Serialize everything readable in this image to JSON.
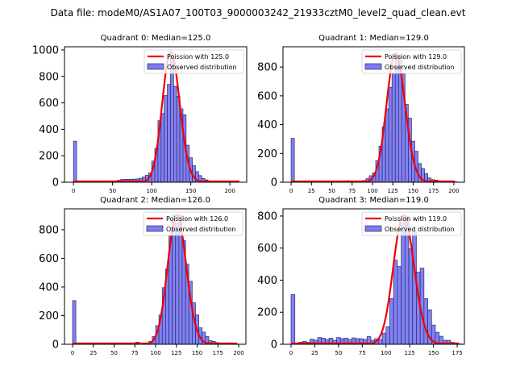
{
  "suptitle": "Data file: modeM0/AS1A07_100T03_9000003242_21933cztM0_level2_quad_clean.evt",
  "colors": {
    "bar_fill": "#7b7bf2",
    "bar_edge": "#2a2a6e",
    "poisson_line": "#ee0000"
  },
  "chart_data": [
    {
      "type": "bar",
      "title": "Quadrant 0: Median=125.0",
      "median": 125.0,
      "bin_width": 4,
      "xlim": [
        -11.5,
        221.5
      ],
      "ylim": [
        0,
        1024
      ],
      "xticks": [
        0,
        50,
        100,
        150,
        200
      ],
      "yticks": [
        0,
        200,
        400,
        600,
        800,
        1000
      ],
      "legend": {
        "position": "top-right",
        "entries": [
          "Poission with 125.0",
          "Observed distribution"
        ]
      },
      "bins": [
        [
          0,
          310
        ],
        [
          36,
          5
        ],
        [
          40,
          5
        ],
        [
          44,
          5
        ],
        [
          48,
          8
        ],
        [
          52,
          10
        ],
        [
          56,
          15
        ],
        [
          60,
          20
        ],
        [
          64,
          22
        ],
        [
          68,
          22
        ],
        [
          72,
          22
        ],
        [
          76,
          24
        ],
        [
          80,
          25
        ],
        [
          84,
          30
        ],
        [
          88,
          40
        ],
        [
          92,
          52
        ],
        [
          96,
          70
        ],
        [
          100,
          160
        ],
        [
          104,
          255
        ],
        [
          108,
          465
        ],
        [
          112,
          520
        ],
        [
          116,
          655
        ],
        [
          120,
          740
        ],
        [
          124,
          960
        ],
        [
          128,
          725
        ],
        [
          132,
          650
        ],
        [
          136,
          555
        ],
        [
          140,
          510
        ],
        [
          144,
          280
        ],
        [
          148,
          185
        ],
        [
          152,
          125
        ],
        [
          156,
          80
        ],
        [
          160,
          50
        ],
        [
          164,
          28
        ],
        [
          168,
          18
        ],
        [
          172,
          10
        ],
        [
          176,
          6
        ],
        [
          180,
          4
        ],
        [
          184,
          3
        ],
        [
          188,
          2
        ]
      ],
      "poisson_mean": 125.0,
      "poisson_peak": 985,
      "poisson_xrange": [
        0,
        212
      ]
    },
    {
      "type": "bar",
      "title": "Quadrant 1: Median=129.0",
      "median": 129.0,
      "bin_width": 4,
      "xlim": [
        -10,
        213
      ],
      "ylim": [
        0,
        941
      ],
      "xticks": [
        0,
        25,
        50,
        75,
        100,
        125,
        150,
        175,
        200
      ],
      "yticks": [
        0,
        200,
        400,
        600,
        800
      ],
      "legend": {
        "position": "top-right",
        "entries": [
          "Poission with 129.0",
          "Observed distribution"
        ]
      },
      "bins": [
        [
          0,
          305
        ],
        [
          68,
          10
        ],
        [
          72,
          8
        ],
        [
          84,
          8
        ],
        [
          88,
          12
        ],
        [
          92,
          25
        ],
        [
          96,
          45
        ],
        [
          100,
          65
        ],
        [
          104,
          150
        ],
        [
          108,
          250
        ],
        [
          112,
          385
        ],
        [
          116,
          510
        ],
        [
          120,
          660
        ],
        [
          124,
          760
        ],
        [
          128,
          880
        ],
        [
          132,
          880
        ],
        [
          136,
          755
        ],
        [
          140,
          540
        ],
        [
          144,
          445
        ],
        [
          148,
          285
        ],
        [
          152,
          215
        ],
        [
          156,
          130
        ],
        [
          160,
          95
        ],
        [
          164,
          60
        ],
        [
          168,
          30
        ],
        [
          172,
          18
        ],
        [
          176,
          15
        ],
        [
          180,
          10
        ],
        [
          184,
          5
        ],
        [
          196,
          4
        ],
        [
          200,
          3
        ]
      ],
      "poisson_mean": 129.0,
      "poisson_peak": 895,
      "poisson_xrange": [
        0,
        201
      ]
    },
    {
      "type": "bar",
      "title": "Quadrant 2: Median=126.0",
      "median": 126.0,
      "bin_width": 4,
      "xlim": [
        -9.7,
        208.7
      ],
      "ylim": [
        0,
        946
      ],
      "xticks": [
        0,
        25,
        50,
        75,
        100,
        125,
        150,
        175,
        200
      ],
      "yticks": [
        0,
        200,
        400,
        600,
        800
      ],
      "legend": {
        "position": "top-right",
        "entries": [
          "Poission with 126.0",
          "Observed distribution"
        ]
      },
      "bins": [
        [
          0,
          305
        ],
        [
          76,
          15
        ],
        [
          88,
          10
        ],
        [
          92,
          20
        ],
        [
          96,
          55
        ],
        [
          100,
          130
        ],
        [
          104,
          205
        ],
        [
          108,
          395
        ],
        [
          112,
          525
        ],
        [
          116,
          755
        ],
        [
          120,
          900
        ],
        [
          124,
          845
        ],
        [
          128,
          900
        ],
        [
          132,
          725
        ],
        [
          136,
          560
        ],
        [
          140,
          440
        ],
        [
          144,
          290
        ],
        [
          148,
          205
        ],
        [
          152,
          115
        ],
        [
          156,
          85
        ],
        [
          160,
          55
        ],
        [
          164,
          25
        ],
        [
          168,
          20
        ],
        [
          172,
          12
        ],
        [
          176,
          5
        ],
        [
          180,
          3
        ],
        [
          196,
          2
        ]
      ],
      "poisson_mean": 126.0,
      "poisson_peak": 905,
      "poisson_xrange": [
        0,
        198
      ]
    },
    {
      "type": "bar",
      "title": "Quadrant 3: Median=119.0",
      "median": 119.0,
      "bin_width": 4,
      "xlim": [
        -8.5,
        182.6
      ],
      "ylim": [
        0,
        845
      ],
      "xticks": [
        0,
        25,
        50,
        75,
        100,
        125,
        150,
        175
      ],
      "yticks": [
        0,
        200,
        400,
        600,
        800
      ],
      "legend": {
        "position": "top-right",
        "entries": [
          "Poission with 119.0",
          "Observed distribution"
        ]
      },
      "bins": [
        [
          0,
          310
        ],
        [
          8,
          12
        ],
        [
          12,
          18
        ],
        [
          16,
          12
        ],
        [
          20,
          32
        ],
        [
          24,
          25
        ],
        [
          28,
          42
        ],
        [
          32,
          38
        ],
        [
          36,
          30
        ],
        [
          40,
          38
        ],
        [
          44,
          25
        ],
        [
          48,
          42
        ],
        [
          52,
          35
        ],
        [
          56,
          38
        ],
        [
          60,
          30
        ],
        [
          64,
          40
        ],
        [
          68,
          35
        ],
        [
          72,
          35
        ],
        [
          76,
          30
        ],
        [
          80,
          48
        ],
        [
          84,
          25
        ],
        [
          88,
          35
        ],
        [
          92,
          30
        ],
        [
          96,
          70
        ],
        [
          100,
          110
        ],
        [
          104,
          285
        ],
        [
          108,
          525
        ],
        [
          112,
          485
        ],
        [
          116,
          755
        ],
        [
          120,
          800
        ],
        [
          124,
          595
        ],
        [
          128,
          705
        ],
        [
          132,
          450
        ],
        [
          136,
          475
        ],
        [
          140,
          285
        ],
        [
          144,
          215
        ],
        [
          148,
          120
        ],
        [
          152,
          75
        ],
        [
          156,
          50
        ],
        [
          160,
          25
        ],
        [
          164,
          25
        ],
        [
          168,
          12
        ],
        [
          172,
          5
        ],
        [
          176,
          2
        ]
      ],
      "poisson_mean": 119.0,
      "poisson_peak": 805,
      "poisson_xrange": [
        0,
        177
      ]
    }
  ]
}
